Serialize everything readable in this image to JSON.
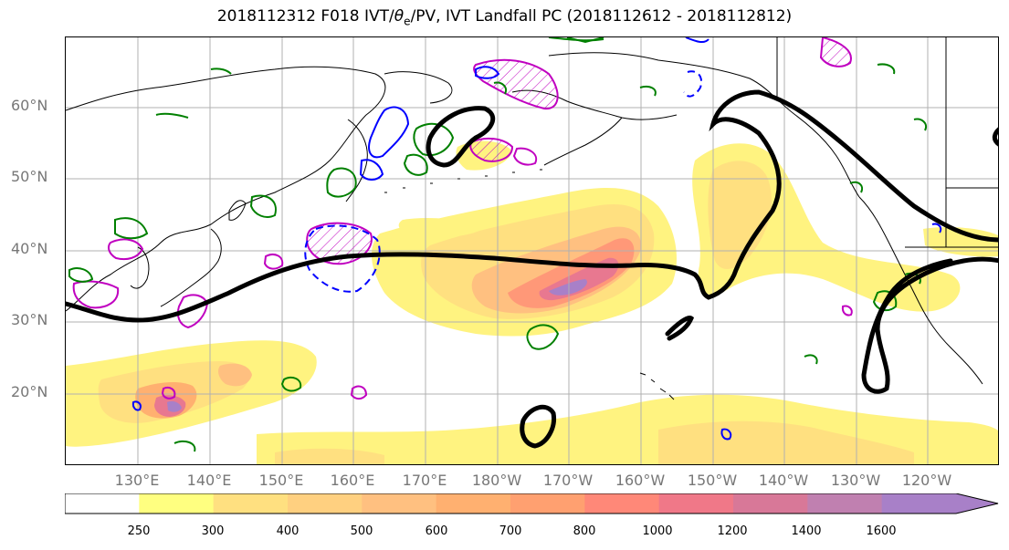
{
  "title": {
    "prefix": "2018112312 F018 IVT/",
    "theta": "θ",
    "theta_sub": "e",
    "suffix": "/PV, IVT Landfall PC (2018112612 - 2018112812)"
  },
  "map": {
    "projection": "PlateCarree",
    "lon_range": [
      120,
      250
    ],
    "lat_range": [
      10,
      70
    ],
    "gridlines": true,
    "lat_labels": [
      "20°N",
      "30°N",
      "40°N",
      "50°N",
      "60°N"
    ],
    "lon_labels": [
      "130°E",
      "140°E",
      "150°E",
      "160°E",
      "170°E",
      "180°W",
      "170°W",
      "160°W",
      "150°W",
      "140°W",
      "130°W",
      "120°W"
    ],
    "layers": {
      "ivt_fill": "yellow-orange-red-purple filled contours (IVT)",
      "theta_e": "black thick contour",
      "pv_positive": "magenta contours, hatched",
      "pv_negative": "blue contours (dashed where negative)",
      "other": "green contours"
    }
  },
  "colorbar": {
    "ticks": [
      "250",
      "300",
      "400",
      "500",
      "600",
      "700",
      "800",
      "1000",
      "1200",
      "1400",
      "1600"
    ],
    "colors": [
      "#ffffff",
      "#ffff80",
      "#ffe080",
      "#ffd080",
      "#ffc080",
      "#ffb070",
      "#ffa070",
      "#ff8878",
      "#f07888",
      "#d87898",
      "#c080b0",
      "#a880c8"
    ],
    "extend": "max"
  },
  "colors": {
    "black_contour": "#000000",
    "magenta": "#c000c0",
    "blue": "#0000ff",
    "green": "#008000",
    "coast": "#000000",
    "grid": "#b0b0b0"
  }
}
